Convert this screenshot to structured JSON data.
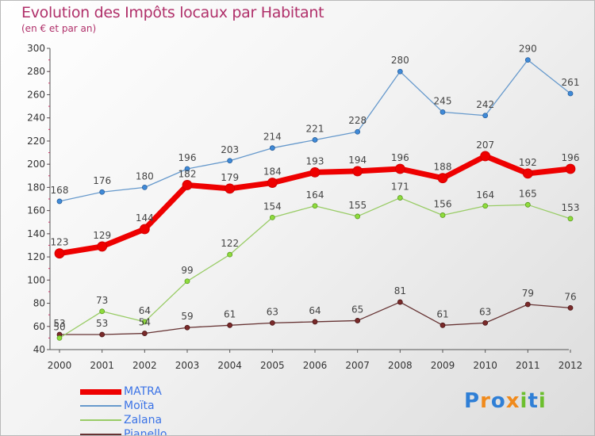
{
  "chart_data": {
    "type": "line",
    "title": "Evolution des Impôts locaux par Habitant",
    "subtitle": "(en € et par an)",
    "xlabel": "",
    "ylabel": "",
    "categories": [
      "2000",
      "2001",
      "2002",
      "2003",
      "2004",
      "2005",
      "2006",
      "2007",
      "2008",
      "2009",
      "2010",
      "2011",
      "2012"
    ],
    "ylim": [
      40,
      300
    ],
    "yticks": [
      40,
      60,
      80,
      100,
      120,
      140,
      160,
      180,
      200,
      220,
      240,
      260,
      280,
      300
    ],
    "grid": false,
    "legend_position": "bottom-left",
    "series": [
      {
        "name": "MATRA",
        "color": "#ee0000",
        "values": [
          123,
          129,
          144,
          182,
          179,
          184,
          193,
          194,
          196,
          188,
          207,
          192,
          196
        ]
      },
      {
        "name": "Moïta",
        "color": "#6699cc",
        "values": [
          168,
          176,
          180,
          196,
          203,
          214,
          221,
          228,
          280,
          245,
          242,
          290,
          261
        ]
      },
      {
        "name": "Zalana",
        "color": "#99cc66",
        "values": [
          50,
          73,
          64,
          99,
          122,
          154,
          164,
          155,
          171,
          156,
          164,
          165,
          153
        ]
      },
      {
        "name": "Pianello",
        "color": "#663333",
        "values": [
          53,
          53,
          54,
          59,
          61,
          63,
          64,
          65,
          81,
          61,
          63,
          79,
          76
        ]
      }
    ]
  },
  "logo": {
    "letters": [
      {
        "ch": "P",
        "color": "#2f7fd6"
      },
      {
        "ch": "r",
        "color": "#f08a1c"
      },
      {
        "ch": "o",
        "color": "#2f7fd6"
      },
      {
        "ch": "x",
        "color": "#f08a1c"
      },
      {
        "ch": "i",
        "color": "#6cbf2e"
      },
      {
        "ch": "t",
        "color": "#2f7fd6"
      },
      {
        "ch": "i",
        "color": "#6cbf2e"
      }
    ]
  }
}
